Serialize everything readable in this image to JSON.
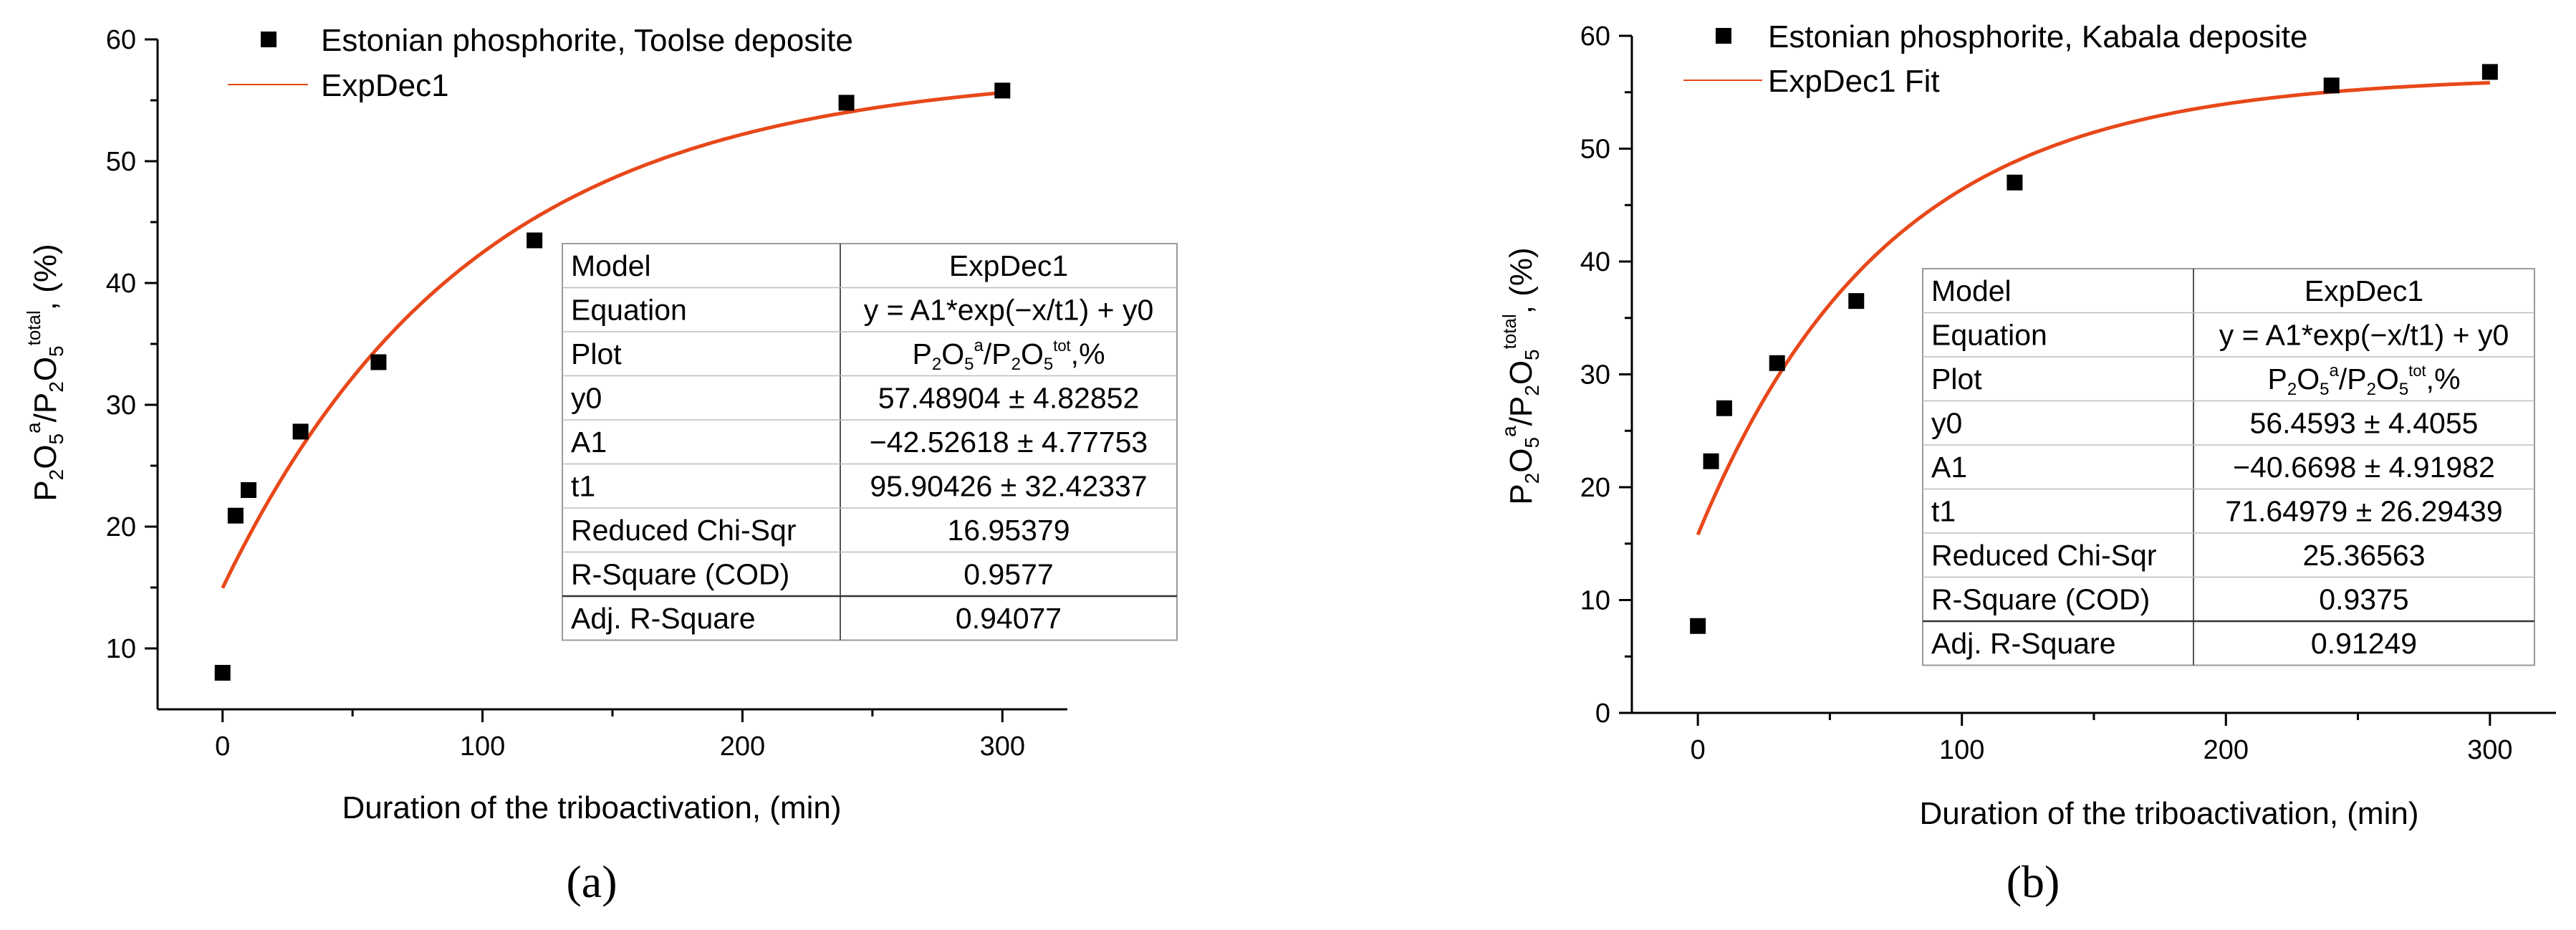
{
  "chart_data": [
    {
      "type": "scatter",
      "panel_label": "(a)",
      "xlabel": "Duration of the triboactivation, (min)",
      "ylabel": {
        "base1": "P",
        "sub1": "2",
        "base2": "O",
        "sub2": "5",
        "sup1": "a",
        "slash": "/",
        "base3": "P",
        "sub3": "2",
        "base4": "O",
        "sub4": "5",
        "sup2": "total",
        "tail": ", (%)"
      },
      "xlim": [
        -25,
        325
      ],
      "ylim": [
        5,
        60
      ],
      "xticks": [
        0,
        100,
        200,
        300
      ],
      "yticks": [
        10,
        20,
        30,
        40,
        50,
        60
      ],
      "series": [
        {
          "name": "Estonian phosphorite, Toolse deposite",
          "kind": "scatter",
          "x": [
            0,
            5,
            10,
            30,
            60,
            120,
            240,
            300
          ],
          "y": [
            8.0,
            20.9,
            23.0,
            27.8,
            33.5,
            43.5,
            54.8,
            55.8
          ]
        },
        {
          "name": "ExpDec1",
          "kind": "fit",
          "color": "#e8481a",
          "y0": 57.48904,
          "A1": -42.52618,
          "t1": 95.90426,
          "xrange": [
            0,
            300
          ]
        }
      ],
      "fit_table": {
        "rows": [
          {
            "label": "Model",
            "value": "ExpDec1"
          },
          {
            "label": "Equation",
            "value": "y = A1*exp(−x/t1) + y0"
          },
          {
            "label": "Plot",
            "value": ""
          },
          {
            "label": "y0",
            "value": "57.48904 ± 4.82852"
          },
          {
            "label": "A1",
            "value": "−42.52618 ± 4.77753"
          },
          {
            "label": "t1",
            "value": "95.90426 ± 32.42337"
          },
          {
            "label": "Reduced Chi-Sqr",
            "value": "16.95379"
          },
          {
            "label": "R-Square (COD)",
            "value": "0.9577"
          },
          {
            "label": "Adj. R-Square",
            "value": "0.94077"
          }
        ],
        "plot_value": {
          "p1": "P",
          "s1": "2",
          "o1": "O",
          "s2": "5",
          "a": "a",
          "slash": "/",
          "p2": "P",
          "s3": "2",
          "o2": "O",
          "s4": "5",
          "tot": "tot",
          "tail": ",%"
        }
      }
    },
    {
      "type": "scatter",
      "panel_label": "(b)",
      "xlabel": "Duration of the triboactivation, (min)",
      "ylabel": {
        "base1": "P",
        "sub1": "2",
        "base2": "O",
        "sub2": "5",
        "sup1": "a",
        "slash": "/",
        "base3": "P",
        "sub3": "2",
        "base4": "O",
        "sub4": "5",
        "sup2": "total",
        "tail": ", (%)"
      },
      "xlim": [
        -25,
        325
      ],
      "ylim": [
        0,
        60
      ],
      "xticks": [
        0,
        100,
        200,
        300
      ],
      "yticks": [
        0,
        10,
        20,
        30,
        40,
        50,
        60
      ],
      "series": [
        {
          "name": "Estonian phosphorite, Kabala deposite",
          "kind": "scatter",
          "x": [
            0,
            5,
            10,
            30,
            60,
            120,
            240,
            300
          ],
          "y": [
            7.7,
            22.3,
            27.0,
            31.0,
            36.5,
            47.0,
            55.6,
            56.8
          ]
        },
        {
          "name": "ExpDec1 Fit",
          "kind": "fit",
          "color": "#e8481a",
          "y0": 56.4593,
          "A1": -40.6698,
          "t1": 71.64979,
          "xrange": [
            0,
            300
          ]
        }
      ],
      "fit_table": {
        "rows": [
          {
            "label": "Model",
            "value": "ExpDec1"
          },
          {
            "label": "Equation",
            "value": "y = A1*exp(−x/t1) + y0"
          },
          {
            "label": "Plot",
            "value": ""
          },
          {
            "label": "y0",
            "value": "56.4593 ± 4.4055"
          },
          {
            "label": "A1",
            "value": "−40.6698 ± 4.91982"
          },
          {
            "label": "t1",
            "value": "71.64979 ± 26.29439"
          },
          {
            "label": "Reduced Chi-Sqr",
            "value": "25.36563"
          },
          {
            "label": "R-Square (COD)",
            "value": "0.9375"
          },
          {
            "label": "Adj. R-Square",
            "value": "0.91249"
          }
        ],
        "plot_value": {
          "p1": "P",
          "s1": "2",
          "o1": "O",
          "s2": "5",
          "a": "a",
          "slash": "/",
          "p2": "P",
          "s3": "2",
          "o2": "O",
          "s4": "5",
          "tot": "tot",
          "tail": ",%"
        }
      }
    }
  ]
}
